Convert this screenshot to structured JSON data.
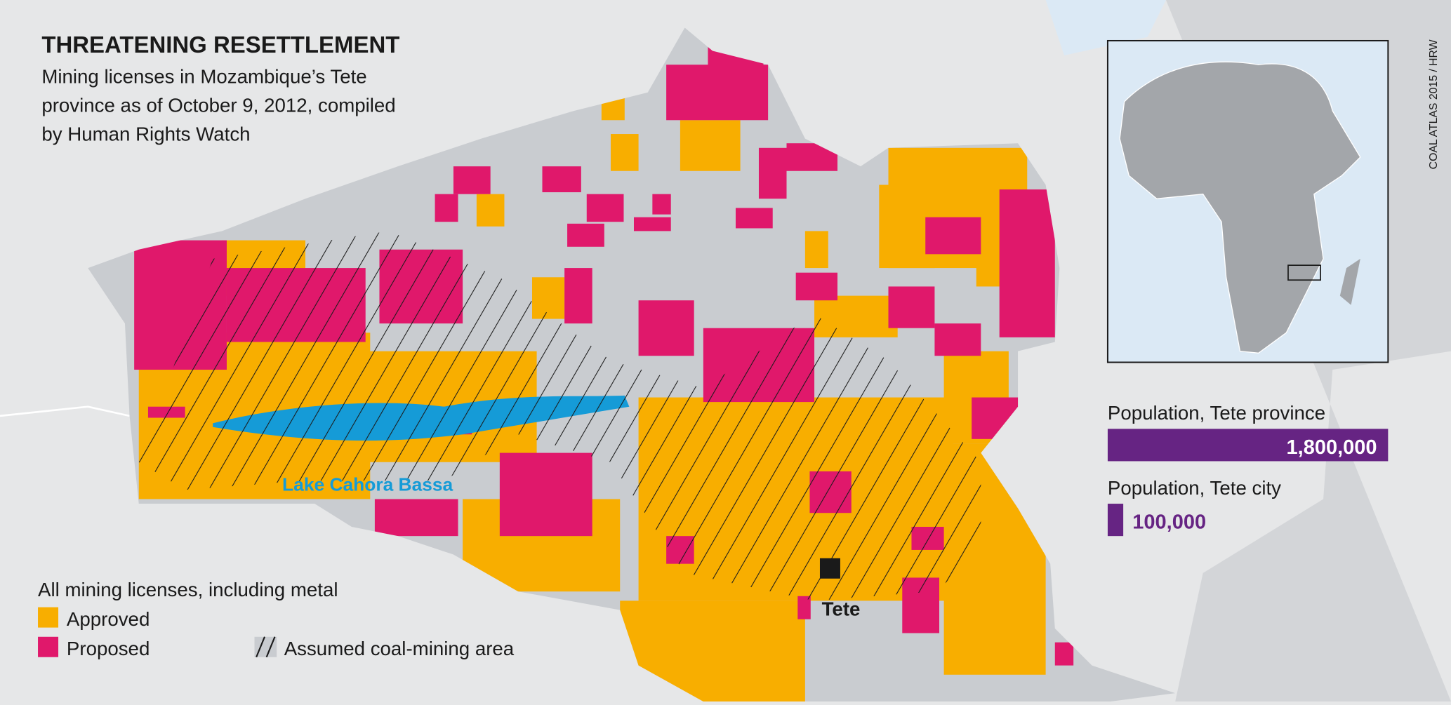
{
  "header": {
    "title": "THREATENING RESETTLEMENT",
    "subtitle_lines": [
      "Mining licenses in Mozambique’s Tete",
      "province as of October 9, 2012, compiled",
      "by Human Rights Watch"
    ]
  },
  "legend": {
    "title": "All mining licenses, including metal",
    "approved": "Approved",
    "proposed": "Proposed",
    "coal": "Assumed coal-mining area"
  },
  "labels": {
    "lake": "Lake Cahora Bassa",
    "city": "Tete"
  },
  "population": {
    "items": [
      {
        "label": "Population, Tete province",
        "value": 1800000,
        "value_label": "1,800,000"
      },
      {
        "label": "Population, Tete city",
        "value": 100000,
        "value_label": "100,000"
      }
    ]
  },
  "credit": "COAL ATLAS 2015 / HRW"
}
